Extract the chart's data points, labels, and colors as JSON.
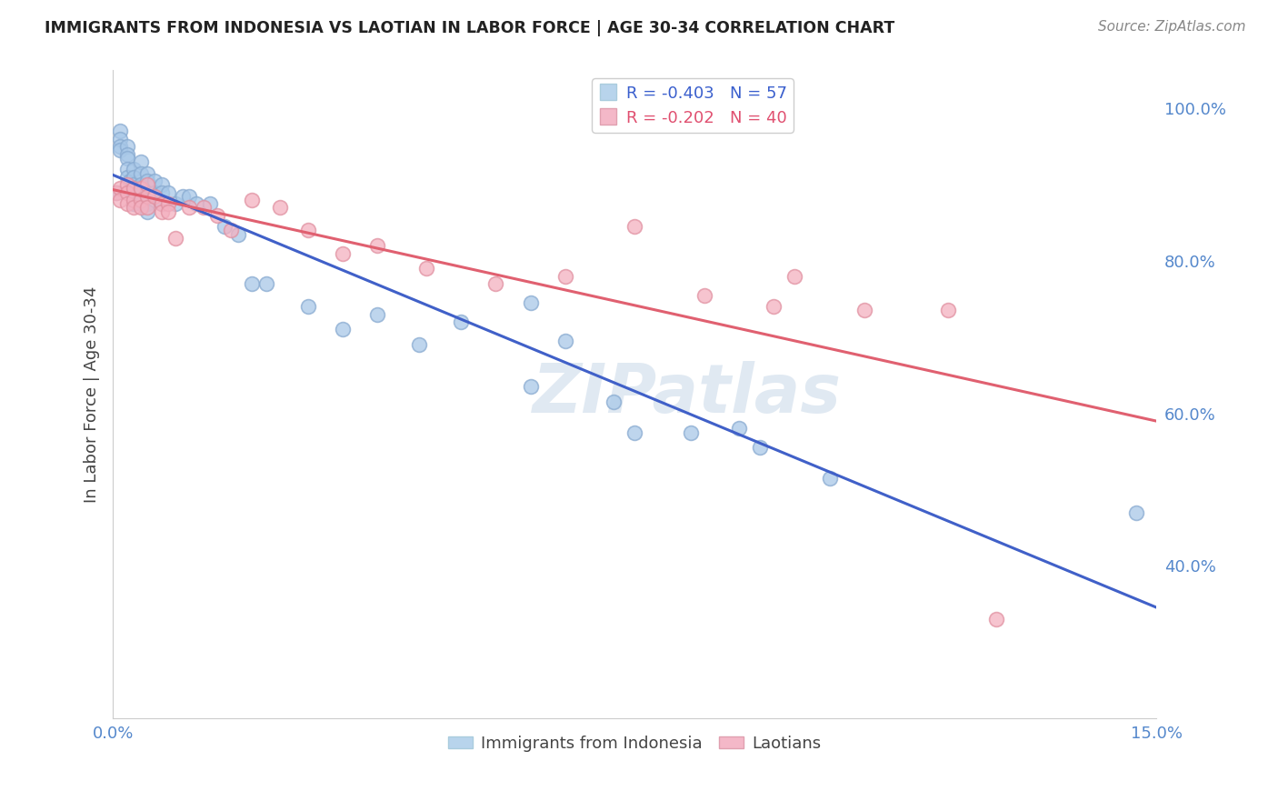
{
  "title": "IMMIGRANTS FROM INDONESIA VS LAOTIAN IN LABOR FORCE | AGE 30-34 CORRELATION CHART",
  "source": "Source: ZipAtlas.com",
  "ylabel_label": "In Labor Force | Age 30-34",
  "xlim": [
    0.0,
    0.15
  ],
  "ylim": [
    0.2,
    1.05
  ],
  "x_ticks": [
    0.0,
    0.03,
    0.06,
    0.09,
    0.12,
    0.15
  ],
  "y_ticks": [
    0.4,
    0.6,
    0.8,
    1.0
  ],
  "y_tick_labels": [
    "40.0%",
    "60.0%",
    "80.0%",
    "100.0%"
  ],
  "legend_r_blue": "R = -0.403",
  "legend_n_blue": "N = 57",
  "legend_r_pink": "R = -0.202",
  "legend_n_pink": "N = 40",
  "blue_scatter_color": "#a8c8e8",
  "blue_edge_color": "#88aad0",
  "pink_scatter_color": "#f4b0c0",
  "pink_edge_color": "#e090a0",
  "blue_line_color": "#4060c8",
  "pink_line_color": "#e06070",
  "watermark": "ZIPatlas",
  "indonesia_x": [
    0.0005,
    0.001,
    0.001,
    0.001,
    0.001,
    0.002,
    0.002,
    0.002,
    0.002,
    0.002,
    0.0025,
    0.003,
    0.003,
    0.003,
    0.003,
    0.003,
    0.003,
    0.004,
    0.004,
    0.004,
    0.004,
    0.004,
    0.005,
    0.005,
    0.005,
    0.005,
    0.005,
    0.006,
    0.006,
    0.007,
    0.007,
    0.007,
    0.008,
    0.009,
    0.01,
    0.011,
    0.012,
    0.014,
    0.016,
    0.018,
    0.02,
    0.022,
    0.028,
    0.033,
    0.038,
    0.044,
    0.05,
    0.06,
    0.075,
    0.09,
    0.06,
    0.065,
    0.072,
    0.083,
    0.093,
    0.103,
    0.147
  ],
  "indonesia_y": [
    0.89,
    0.97,
    0.96,
    0.95,
    0.945,
    0.95,
    0.94,
    0.935,
    0.92,
    0.91,
    0.905,
    0.92,
    0.91,
    0.9,
    0.895,
    0.885,
    0.875,
    0.93,
    0.915,
    0.9,
    0.89,
    0.875,
    0.915,
    0.905,
    0.89,
    0.875,
    0.865,
    0.905,
    0.89,
    0.9,
    0.89,
    0.875,
    0.89,
    0.875,
    0.885,
    0.885,
    0.875,
    0.875,
    0.845,
    0.835,
    0.77,
    0.77,
    0.74,
    0.71,
    0.73,
    0.69,
    0.72,
    0.635,
    0.575,
    0.58,
    0.745,
    0.695,
    0.615,
    0.575,
    0.555,
    0.515,
    0.47
  ],
  "laotian_x": [
    0.0005,
    0.001,
    0.001,
    0.002,
    0.002,
    0.002,
    0.003,
    0.003,
    0.003,
    0.004,
    0.004,
    0.004,
    0.005,
    0.005,
    0.005,
    0.006,
    0.007,
    0.007,
    0.008,
    0.008,
    0.009,
    0.011,
    0.013,
    0.015,
    0.017,
    0.02,
    0.024,
    0.028,
    0.033,
    0.038,
    0.045,
    0.055,
    0.065,
    0.075,
    0.085,
    0.095,
    0.108,
    0.12,
    0.098,
    0.127
  ],
  "laotian_y": [
    0.89,
    0.895,
    0.88,
    0.9,
    0.89,
    0.875,
    0.895,
    0.88,
    0.87,
    0.895,
    0.88,
    0.87,
    0.9,
    0.885,
    0.87,
    0.885,
    0.875,
    0.865,
    0.875,
    0.865,
    0.83,
    0.87,
    0.87,
    0.86,
    0.84,
    0.88,
    0.87,
    0.84,
    0.81,
    0.82,
    0.79,
    0.77,
    0.78,
    0.845,
    0.755,
    0.74,
    0.735,
    0.735,
    0.78,
    0.33
  ]
}
